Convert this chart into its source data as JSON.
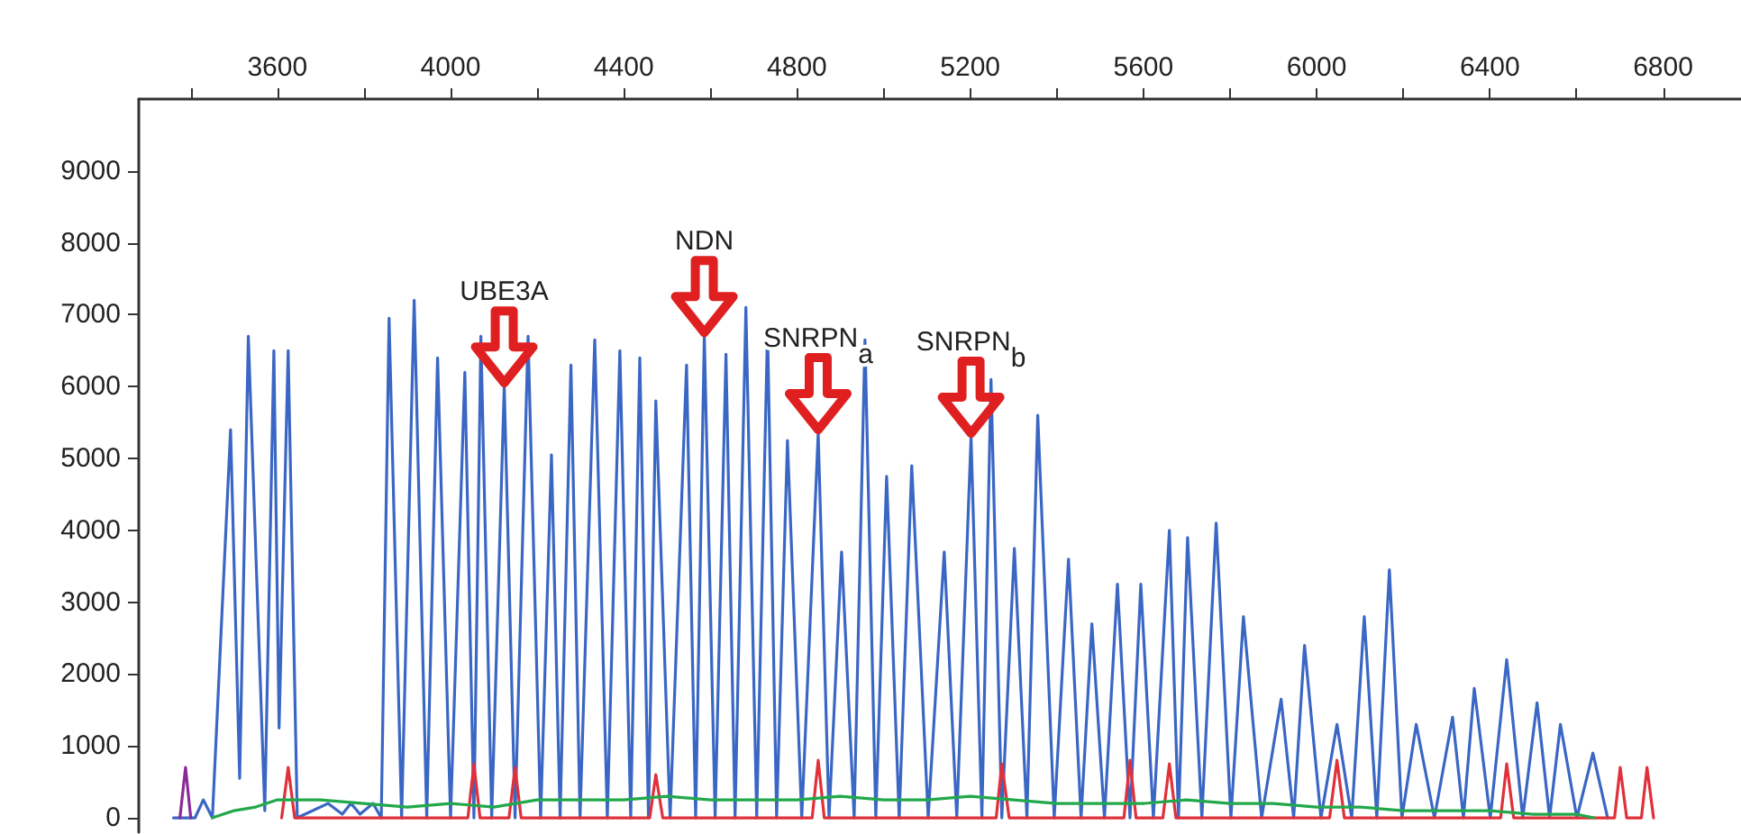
{
  "chart_data": {
    "type": "line",
    "xlim": [
      3280,
      6980
    ],
    "ylim": [
      -200,
      10000
    ],
    "xticks": [
      {
        "value": 3400,
        "label": null
      },
      3600,
      {
        "value": 3800,
        "label": null
      },
      4000,
      {
        "value": 4200,
        "label": null
      },
      4400,
      {
        "value": 4600,
        "label": null
      },
      4800,
      {
        "value": 5000,
        "label": null
      },
      5200,
      {
        "value": 5400,
        "label": null
      },
      5600,
      {
        "value": 5800,
        "label": null
      },
      6000,
      {
        "value": 6200,
        "label": null
      },
      6400,
      {
        "value": 6600,
        "label": null
      },
      6800
    ],
    "yticks": [
      0,
      1000,
      2000,
      3000,
      4000,
      5000,
      6000,
      7000,
      8000,
      9000
    ],
    "grid": false,
    "marker": "none",
    "series": [
      {
        "color": "#22a84a",
        "x": [
          3450,
          3500,
          3550,
          3600,
          3700,
          3800,
          3900,
          4000,
          4100,
          4200,
          4300,
          4400,
          4500,
          4600,
          4700,
          4800,
          4900,
          5000,
          5100,
          5200,
          5300,
          5400,
          5500,
          5600,
          5700,
          5800,
          5900,
          6000,
          6100,
          6200,
          6300,
          6400,
          6500,
          6600,
          6640
        ],
        "values": [
          0,
          100,
          150,
          250,
          250,
          200,
          150,
          200,
          150,
          250,
          250,
          250,
          300,
          250,
          250,
          250,
          300,
          250,
          250,
          300,
          250,
          200,
          200,
          200,
          250,
          200,
          200,
          150,
          150,
          100,
          100,
          100,
          50,
          50,
          0
        ]
      },
      {
        "color": "#8a2a9a",
        "x": [
          3375,
          3388,
          3400
        ],
        "values": [
          0,
          700,
          0
        ]
      },
      {
        "color": "#e0303a",
        "x": [
          3610,
          3625,
          3640,
          4040,
          4054,
          4068,
          4135,
          4149,
          4163,
          4460,
          4474,
          4490,
          4835,
          4849,
          4863,
          5260,
          5273,
          5290,
          5555,
          5569,
          5583,
          5645,
          5660,
          5675,
          6030,
          6047,
          6064,
          6425,
          6439,
          6455,
          6688,
          6701,
          6716,
          6750,
          6763,
          6778
        ],
        "values": [
          0,
          700,
          0,
          0,
          750,
          0,
          0,
          700,
          0,
          0,
          600,
          0,
          0,
          800,
          0,
          0,
          750,
          0,
          0,
          800,
          0,
          0,
          750,
          0,
          0,
          800,
          0,
          0,
          750,
          0,
          0,
          700,
          0,
          0,
          700,
          0
        ]
      },
      {
        "color": "#3a66c4",
        "x": [
          3360,
          3410,
          3429,
          3450,
          3492,
          3513,
          3533,
          3571,
          3592,
          3604,
          3625,
          3646,
          3717,
          3750,
          3770,
          3791,
          3821,
          3840,
          3858,
          3887,
          3916,
          3945,
          3970,
          4000,
          4033,
          4054,
          4070,
          4095,
          4124,
          4149,
          4179,
          4208,
          4233,
          4253,
          4278,
          4299,
          4333,
          4362,
          4391,
          4416,
          4437,
          4457,
          4474,
          4507,
          4545,
          4566,
          4586,
          4611,
          4636,
          4657,
          4682,
          4707,
          4732,
          4753,
          4778,
          4811,
          4849,
          4874,
          4903,
          4932,
          4957,
          4982,
          5007,
          5036,
          5065,
          5103,
          5140,
          5169,
          5202,
          5227,
          5248,
          5273,
          5302,
          5331,
          5356,
          5394,
          5427,
          5456,
          5481,
          5510,
          5540,
          5569,
          5594,
          5623,
          5660,
          5681,
          5702,
          5735,
          5768,
          5802,
          5831,
          5873,
          5918,
          5947,
          5972,
          6010,
          6047,
          6081,
          6110,
          6139,
          6168,
          6197,
          6230,
          6272,
          6314,
          6339,
          6364,
          6401,
          6439,
          6476,
          6509,
          6538,
          6563,
          6601,
          6638,
          6672
        ],
        "values": [
          0,
          0,
          250,
          0,
          5400,
          550,
          6700,
          100,
          6500,
          1250,
          6500,
          0,
          200,
          50,
          200,
          50,
          200,
          0,
          6950,
          0,
          7200,
          0,
          6400,
          0,
          6200,
          0,
          6700,
          0,
          6000,
          0,
          6700,
          0,
          5050,
          0,
          6300,
          0,
          6650,
          0,
          6500,
          0,
          6400,
          0,
          5800,
          0,
          6300,
          0,
          6700,
          0,
          6450,
          0,
          7100,
          0,
          6800,
          0,
          5250,
          0,
          5350,
          0,
          3700,
          0,
          6650,
          0,
          4750,
          0,
          4900,
          0,
          3700,
          0,
          5300,
          0,
          6100,
          0,
          3750,
          0,
          5600,
          0,
          3600,
          0,
          2700,
          0,
          3250,
          0,
          3250,
          0,
          4000,
          0,
          3900,
          0,
          4100,
          0,
          2800,
          0,
          1650,
          0,
          2400,
          0,
          1300,
          0,
          2800,
          0,
          3450,
          0,
          1300,
          0,
          1400,
          0,
          1800,
          0,
          2200,
          0,
          1600,
          0,
          1300,
          0,
          900,
          0
        ]
      }
    ],
    "annotations": [
      {
        "text": "UBE3A",
        "x": 4124,
        "y": 6000
      },
      {
        "text": "NDN",
        "x": 4586,
        "y": 6700
      },
      {
        "text": "SNRPN$_{a}$",
        "x": 4849,
        "y": 5350
      },
      {
        "text": "SNRPN$_{b}$",
        "x": 5202,
        "y": 5300
      }
    ]
  }
}
